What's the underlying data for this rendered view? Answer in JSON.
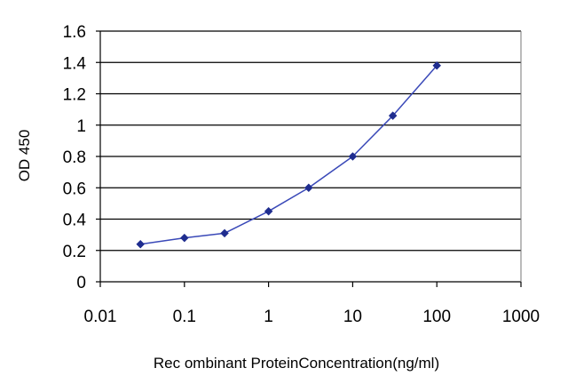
{
  "chart_data": {
    "type": "line",
    "title": "",
    "xlabel": "Rec ombinant ProteinConcentration(ng/ml)",
    "ylabel": "OD 450",
    "x_scale": "log",
    "xlim": [
      0.01,
      1000
    ],
    "ylim": [
      0,
      1.6
    ],
    "x_ticks": [
      0.01,
      0.1,
      1,
      10,
      100,
      1000
    ],
    "x_tick_labels": [
      "0.01",
      "0.1",
      "1",
      "10",
      "100",
      "1000"
    ],
    "y_ticks": [
      0,
      0.2,
      0.4,
      0.6,
      0.8,
      1,
      1.2,
      1.4,
      1.6
    ],
    "y_tick_labels": [
      "0",
      "0.2",
      "0.4",
      "0.6",
      "0.8",
      "1",
      "1.2",
      "1.4",
      "1.6"
    ],
    "grid": "horizontal",
    "legend": "none",
    "series": [
      {
        "x": [
          0.03,
          0.1,
          0.3,
          1,
          3,
          10,
          30,
          100
        ],
        "y": [
          0.24,
          0.28,
          0.31,
          0.45,
          0.6,
          0.8,
          1.06,
          1.38
        ]
      }
    ],
    "colors": {
      "line": "#3a49b8",
      "marker": "#1f2d8f",
      "gridline": "#000000",
      "plot_background": "#ffffff"
    }
  }
}
